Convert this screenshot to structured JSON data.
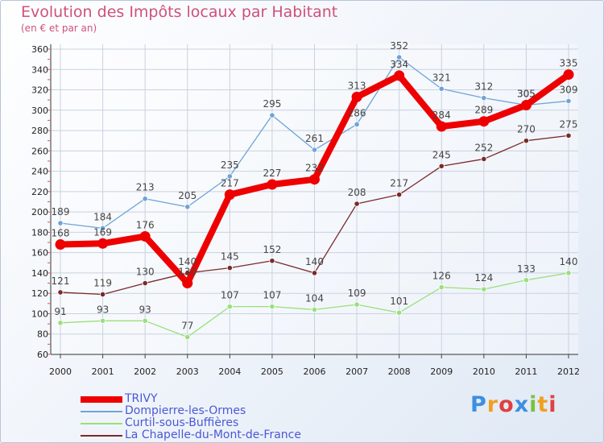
{
  "header": {
    "title": "Evolution des Impôts locaux par Habitant",
    "subtitle": "(en € et par an)"
  },
  "logo": {
    "text": "Proxiti",
    "colors": [
      "#3d8fe0",
      "#f0a020",
      "#e04040",
      "#3d8fe0",
      "#7cc040",
      "#f0a020",
      "#e04040"
    ]
  },
  "chart_data": {
    "type": "line",
    "title": "Evolution des Impôts locaux par Habitant",
    "subtitle": "(en € et par an)",
    "xlabel": "",
    "ylabel": "",
    "x": [
      "2000",
      "2001",
      "2002",
      "2003",
      "2004",
      "2005",
      "2006",
      "2007",
      "2008",
      "2009",
      "2010",
      "2011",
      "2012"
    ],
    "ylim": [
      60,
      360
    ],
    "yticks": [
      "60",
      "80",
      "100",
      "120",
      "140",
      "160",
      "180",
      "200",
      "220",
      "240",
      "260",
      "280",
      "300",
      "320",
      "340",
      "360"
    ],
    "grid": true,
    "legend_position": "bottom-left",
    "series": [
      {
        "name": "TRIVY",
        "color": "#ee0000",
        "values": [
          168,
          169,
          176,
          130,
          217,
          227,
          232,
          313,
          334,
          284,
          289,
          305,
          335
        ]
      },
      {
        "name": "Dompierre-les-Ormes",
        "color": "#6fa3d8",
        "values": [
          189,
          184,
          213,
          205,
          235,
          295,
          261,
          286,
          352,
          321,
          312,
          305,
          309
        ]
      },
      {
        "name": "Curtil-sous-Buffières",
        "color": "#99e07a",
        "values": [
          91,
          93,
          93,
          77,
          107,
          107,
          104,
          109,
          101,
          126,
          124,
          133,
          140
        ]
      },
      {
        "name": "La Chapelle-du-Mont-de-France",
        "color": "#7a2a2a",
        "values": [
          121,
          119,
          130,
          140,
          145,
          152,
          140,
          208,
          217,
          245,
          252,
          270,
          275
        ]
      }
    ]
  }
}
